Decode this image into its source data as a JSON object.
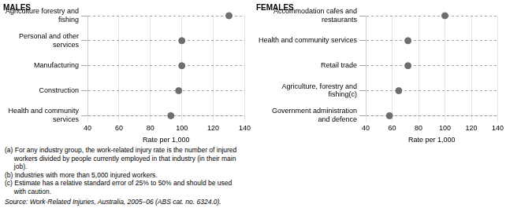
{
  "chart_data": [
    {
      "type": "dot",
      "title": "MALES",
      "orientation": "horizontal",
      "categories": [
        "Agriculture forestry and\nfishing",
        "Personal and other\nservices",
        "Manufacturing",
        "Construction",
        "Health and community\nservices"
      ],
      "values": [
        130,
        100,
        100,
        98,
        93
      ],
      "color": "#6e6e6e",
      "xlim": [
        40,
        140
      ],
      "xticks": [
        40,
        60,
        80,
        100,
        120,
        140
      ],
      "xlabel": "Rate per 1,000",
      "grid": true
    },
    {
      "type": "dot",
      "title": "FEMALES",
      "orientation": "horizontal",
      "categories": [
        "Accommodation cafes and\nrestaurants",
        "Health and community services",
        "Retail trade",
        "Agriculture, forestry and\nfishing(c)",
        "Government administration\nand defence"
      ],
      "values": [
        100,
        72,
        72,
        65,
        58
      ],
      "color": "#6e6e6e",
      "xlim": [
        40,
        140
      ],
      "xticks": [
        40,
        60,
        80,
        100,
        120,
        140
      ],
      "xlabel": "Rate per 1,000",
      "grid": true
    }
  ],
  "annotations": [
    "(a) For any industry group, the work-related injury rate is the number of injured\n     workers divided by people currently employed in that industry (in their main\n     job).",
    "(b) Industries with more than 5,000 injured workers.",
    "(c) Estimate has a relative standard error of 25% to 50% and should be used\n     with caution.",
    "Source: Work-Related Injuries, Australia, 2005–06 (ABS cat. no. 6324.0)."
  ]
}
